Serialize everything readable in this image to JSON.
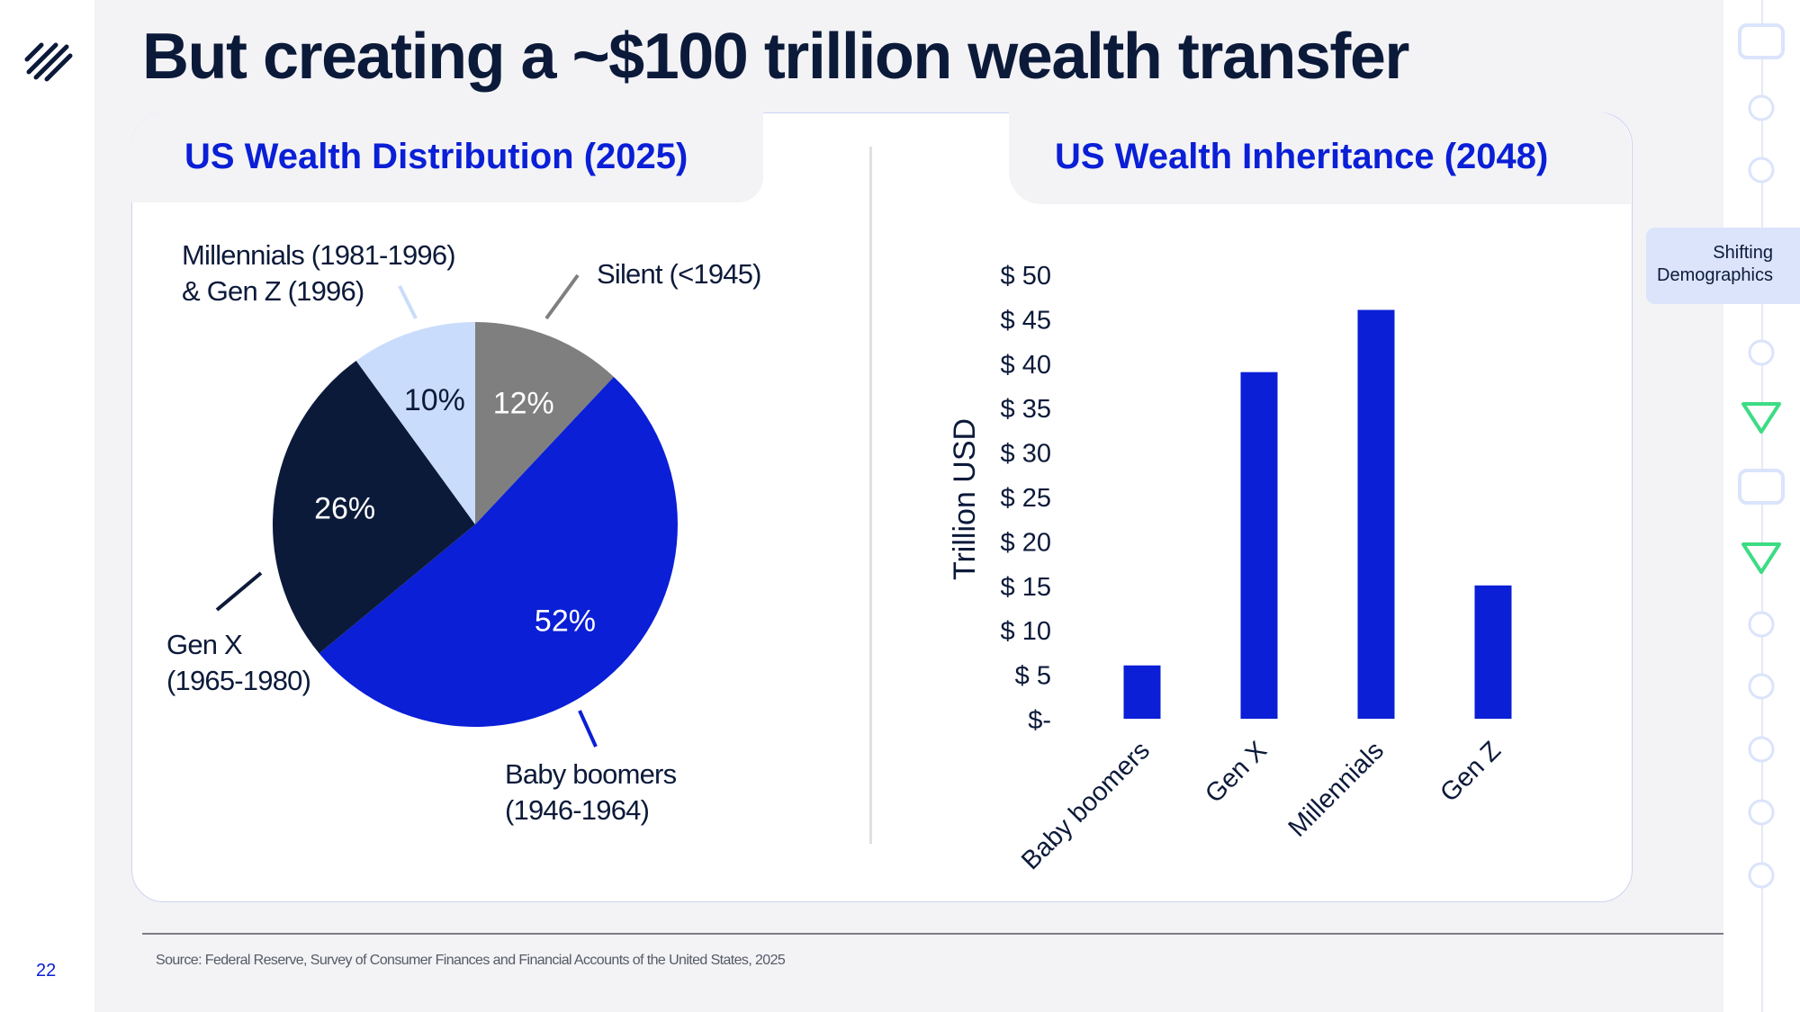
{
  "slide": {
    "title": "But creating a ~$100 trillion wealth transfer",
    "page_number": "22",
    "source": "Source: Federal Reserve, Survey of Consumer Finances and Financial Accounts of the United States, 2025",
    "section_label_line1": "Shifting",
    "section_label_line2": "Demographics"
  },
  "colors": {
    "brand_blue": "#0a1fd6",
    "navy": "#0c1a3a",
    "light_blue": "#c9dcfb",
    "gray": "#7f7f7f",
    "accent_green": "#3ddc84"
  },
  "pie": {
    "title": "US Wealth Distribution (2025)",
    "labels": {
      "millennials_line1": "Millennials (1981-1996)",
      "millennials_line2": "& Gen Z (1996)",
      "silent": "Silent (<1945)",
      "genx_line1": "Gen X",
      "genx_line2": "(1965-1980)",
      "boomers_line1": "Baby boomers",
      "boomers_line2": "(1946-1964)"
    }
  },
  "bars": {
    "title": "US Wealth Inheritance (2048)"
  },
  "chart_data": [
    {
      "type": "pie",
      "title": "US Wealth Distribution (2025)",
      "slices": [
        {
          "name": "Silent (<1945)",
          "value": 12,
          "label": "12%",
          "color": "#7f7f7f"
        },
        {
          "name": "Baby boomers (1946-1964)",
          "value": 52,
          "label": "52%",
          "color": "#0a1fd6"
        },
        {
          "name": "Gen X (1965-1980)",
          "value": 26,
          "label": "26%",
          "color": "#0c1a3a"
        },
        {
          "name": "Millennials (1981-1996) & Gen Z (1996)",
          "value": 10,
          "label": "10%",
          "color": "#c9dcfb"
        }
      ]
    },
    {
      "type": "bar",
      "title": "US Wealth Inheritance (2048)",
      "categories": [
        "Baby boomers",
        "Gen X",
        "Millennials",
        "Gen Z"
      ],
      "values": [
        6,
        39,
        46,
        15
      ],
      "ylabel": "Trillion USD",
      "ylim": [
        0,
        50
      ],
      "yticks": [
        0,
        5,
        10,
        15,
        20,
        25,
        30,
        35,
        40,
        45,
        50
      ],
      "ytick_labels": [
        "$-",
        "$ 5",
        "$ 10",
        "$ 15",
        "$ 20",
        "$ 25",
        "$ 30",
        "$ 35",
        "$ 40",
        "$ 45",
        "$ 50"
      ],
      "bar_color": "#0a1fd6",
      "grid": false
    }
  ]
}
